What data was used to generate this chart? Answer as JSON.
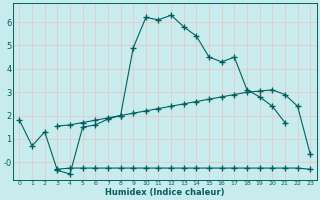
{
  "xlabel": "Humidex (Indice chaleur)",
  "x": [
    0,
    1,
    2,
    3,
    4,
    5,
    6,
    7,
    8,
    9,
    10,
    11,
    12,
    13,
    14,
    15,
    16,
    17,
    18,
    19,
    20,
    21,
    22,
    23
  ],
  "line1_y": [
    1.8,
    0.7,
    1.3,
    -0.35,
    -0.5,
    1.5,
    1.6,
    1.85,
    2.0,
    4.9,
    6.2,
    6.1,
    6.3,
    5.8,
    5.4,
    4.5,
    4.3,
    4.5,
    3.1,
    2.8,
    2.4,
    1.7,
    null,
    null
  ],
  "line2_y": [
    null,
    null,
    null,
    -0.3,
    -0.25,
    -0.25,
    -0.25,
    -0.25,
    -0.25,
    -0.25,
    -0.25,
    -0.25,
    -0.25,
    -0.25,
    -0.25,
    -0.25,
    -0.25,
    -0.25,
    -0.25,
    -0.25,
    -0.25,
    -0.25,
    -0.25,
    -0.3
  ],
  "line3_y": [
    null,
    null,
    null,
    1.55,
    1.6,
    1.7,
    1.8,
    1.9,
    2.0,
    2.1,
    2.2,
    2.3,
    2.4,
    2.5,
    2.6,
    2.7,
    2.8,
    2.9,
    3.0,
    3.05,
    3.1,
    2.9,
    2.4,
    0.35
  ],
  "line_color": "#006060",
  "bg_color": "#c8eced",
  "grid_color": "#e8c8c8",
  "ylim": [
    -0.75,
    6.8
  ],
  "yticks": [
    0,
    1,
    2,
    3,
    4,
    5,
    6
  ],
  "ytick_labels": [
    "-0",
    "1",
    "2",
    "3",
    "4",
    "5",
    "6"
  ],
  "marker": "+",
  "markersize": 4,
  "linewidth": 0.8
}
